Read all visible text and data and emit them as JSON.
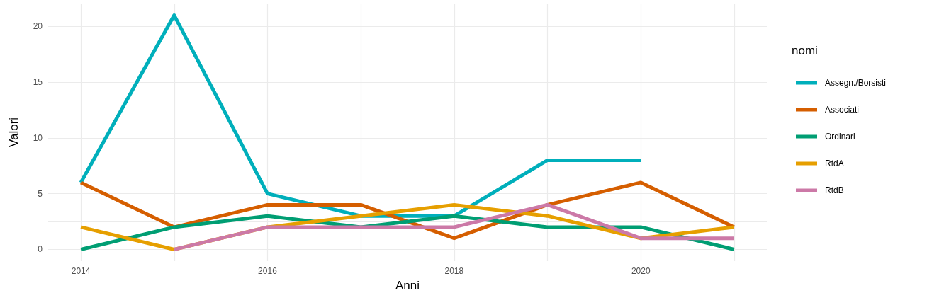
{
  "chart_data": {
    "type": "line",
    "xlabel": "Anni",
    "ylabel": "Valori",
    "legend_title": "nomi",
    "x": [
      2014,
      2015,
      2016,
      2017,
      2018,
      2019,
      2020,
      2021
    ],
    "series": [
      {
        "name": "Assegn./Borsisti",
        "color": "#00afbb",
        "values": [
          6,
          21,
          5,
          3,
          3,
          8,
          8,
          null
        ]
      },
      {
        "name": "Associati",
        "color": "#d55e00",
        "values": [
          6,
          2,
          4,
          4,
          1,
          4,
          6,
          2
        ]
      },
      {
        "name": "Ordinari",
        "color": "#009e73",
        "values": [
          0,
          2,
          3,
          2,
          3,
          2,
          2,
          0
        ]
      },
      {
        "name": "RtdA",
        "color": "#e69f00",
        "values": [
          2,
          0,
          2,
          3,
          4,
          3,
          1,
          2
        ]
      },
      {
        "name": "RtdB",
        "color": "#cc79a7",
        "values": [
          null,
          0,
          2,
          2,
          2,
          4,
          1,
          1
        ]
      }
    ],
    "xlim": [
      2013.65,
      2021.35
    ],
    "xticks": [
      2014,
      {
        "value": 2015,
        "label": null
      },
      2016,
      {
        "value": 2017,
        "label": null
      },
      2018,
      {
        "value": 2019,
        "label": null
      },
      2020,
      {
        "value": 2021,
        "label": null
      }
    ],
    "ylim": [
      -1.05,
      22.05
    ],
    "yticks": [
      0,
      {
        "value": 2.5,
        "label": null
      },
      5,
      {
        "value": 7.5,
        "label": null
      },
      10,
      {
        "value": 12.5,
        "label": null
      },
      15,
      {
        "value": 17.5,
        "label": null
      },
      20
    ],
    "grid": true,
    "legend": "right",
    "marker": "none",
    "line_style": "solid"
  }
}
